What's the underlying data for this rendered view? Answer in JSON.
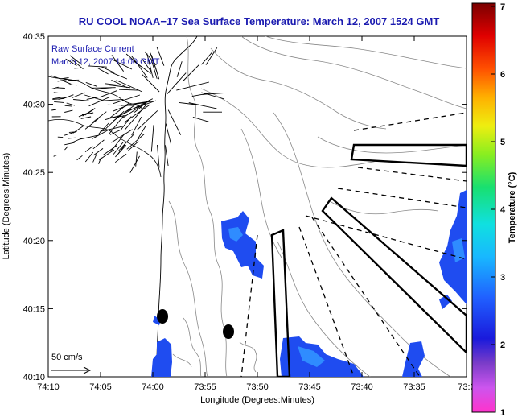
{
  "title": "RU COOL  NOAA−17 Sea Surface Temperature:  March 12, 2007 1524 GMT",
  "overlay": {
    "line1": "Raw Surface Current",
    "line2": "March 12, 2007 14:00 GMT",
    "scale_label": "50 cm/s"
  },
  "axes": {
    "xlabel": "Longitude (Degrees:Minutes)",
    "ylabel": "Latitude (Degrees:Minutes)",
    "xticks": [
      "74:10",
      "74:05",
      "74:00",
      "73:55",
      "73:50",
      "73:45",
      "73:40",
      "73:35",
      "73:3"
    ],
    "yticks": [
      "40:35",
      "40:30",
      "40:25",
      "40:20",
      "40:15",
      "40:10"
    ]
  },
  "colorbar": {
    "label": "Temperature (°C)",
    "ticks": [
      "7",
      "6",
      "5",
      "4",
      "3",
      "2",
      "1"
    ],
    "min": 1,
    "max": 7
  },
  "colors": {
    "title": "#1b1bb0",
    "sst_blue": "#1f4cf0",
    "sst_light": "#2f8cff"
  }
}
